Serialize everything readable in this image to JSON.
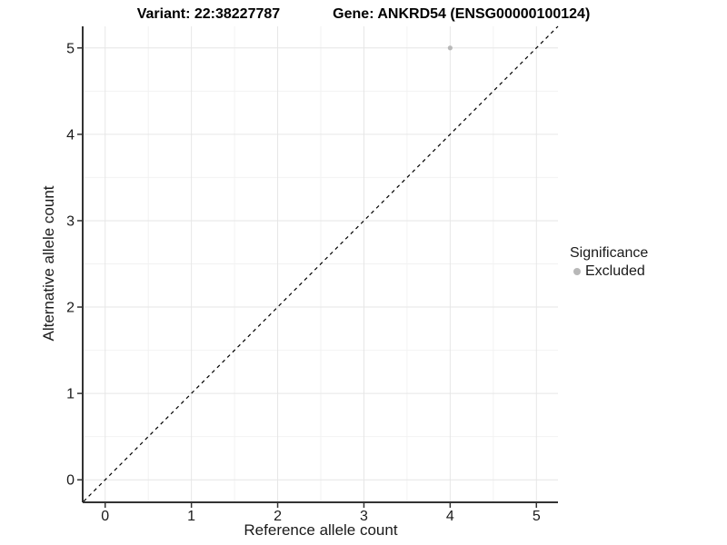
{
  "header": {
    "variant_title": "Variant: 22:38227787",
    "gene_title": "Gene: ANKRD54 (ENSG00000100124)"
  },
  "legend": {
    "title": "Significance",
    "items": [
      {
        "label": "Excluded",
        "color": "#b8b8b8"
      }
    ]
  },
  "chart_data": {
    "type": "scatter",
    "title": "Variant: 22:38227787   Gene: ANKRD54 (ENSG00000100124)",
    "xlabel": "Reference allele count",
    "ylabel": "Alternative allele count",
    "xlim": [
      -0.25,
      5.25
    ],
    "ylim": [
      -0.25,
      5.25
    ],
    "x_ticks": [
      0,
      1,
      2,
      3,
      4,
      5
    ],
    "y_ticks": [
      0,
      1,
      2,
      3,
      4,
      5
    ],
    "grid": {
      "major": true,
      "minor": true,
      "major_color": "#e6e6e6",
      "minor_color": "#f2f2f2"
    },
    "reference_line": {
      "kind": "identity",
      "slope": 1,
      "intercept": 0,
      "style": "dashed",
      "color": "#000000"
    },
    "series": [
      {
        "name": "Excluded",
        "color": "#b8b8b8",
        "points": [
          {
            "x": 4,
            "y": 5
          }
        ]
      }
    ],
    "legend_position": "right",
    "axis_color": "#333333",
    "tick_label_color": "#1a1a1a",
    "tick_label_size": 16
  }
}
